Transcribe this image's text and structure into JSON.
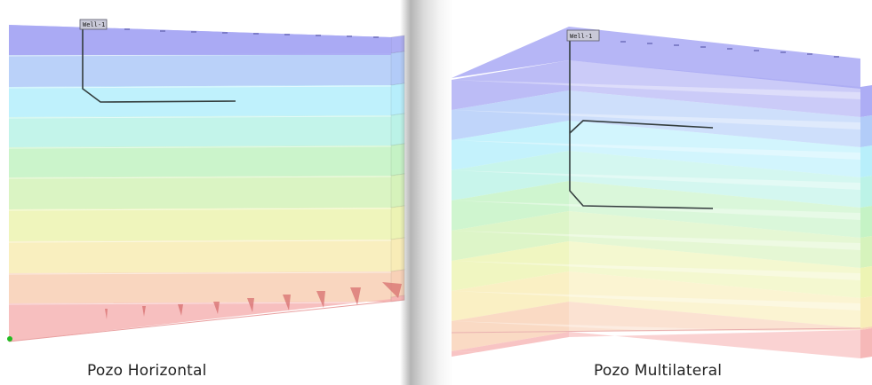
{
  "panels": [
    {
      "caption": "Pozo Horizontal",
      "well_label": "Well-1"
    },
    {
      "caption": "Pozo Multilateral",
      "well_label": "Well-1"
    }
  ],
  "colors": {
    "layers": [
      "#a9a9f4",
      "#aec9f8",
      "#b4eefb",
      "#b8f2e6",
      "#c2f2c2",
      "#d4f2b8",
      "#ecf3b0",
      "#f8ecb4",
      "#f8cfb4",
      "#f6b4b4"
    ],
    "well_path": "#333d3d",
    "start_marker": "#22bb22"
  }
}
